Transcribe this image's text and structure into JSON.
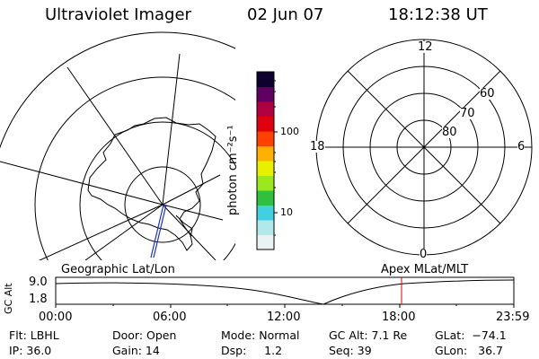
{
  "header": {
    "title": "Ultraviolet Imager",
    "date": "02 Jun 07",
    "time": "18:12:38 UT"
  },
  "colorbar": {
    "label": "photon cm⁻²s⁻¹",
    "ticks": [
      "100",
      "10"
    ],
    "colors": [
      "#e8f4f4",
      "#b0e8ec",
      "#40d0e0",
      "#30c040",
      "#9ce81c",
      "#e8f000",
      "#ffb000",
      "#ff4000",
      "#e00010",
      "#b00040",
      "#600060",
      "#100030"
    ]
  },
  "left_map": {
    "label": "Geographic Lat/Lon"
  },
  "right_polar": {
    "label": "Apex MLat/MLT",
    "mlt_labels": {
      "top": "12",
      "left": "18",
      "right": "6",
      "bottom": "0"
    },
    "lat_labels": [
      "60",
      "70",
      "80"
    ]
  },
  "altitude_plot": {
    "ylabel": "GC Alt",
    "yticks": [
      "9.0",
      "1.8"
    ],
    "xticks": [
      "00:00",
      "06:00",
      "12:00",
      "18:00",
      "23:59"
    ],
    "marker_time": "18:12",
    "marker_color": "#e00000"
  },
  "footer": {
    "flt": "Flt: LBHL",
    "ip": "IP: 36.0",
    "door": "Door: Open",
    "gain": "Gain: 14",
    "mode": "Mode: Normal",
    "dsp": "Dsp:     1.2",
    "gcalt": "GC Alt: 7.1 Re",
    "seq": "Seq: 39",
    "glat": "GLat:  −74.1",
    "glon": "GLon:   36.7"
  }
}
